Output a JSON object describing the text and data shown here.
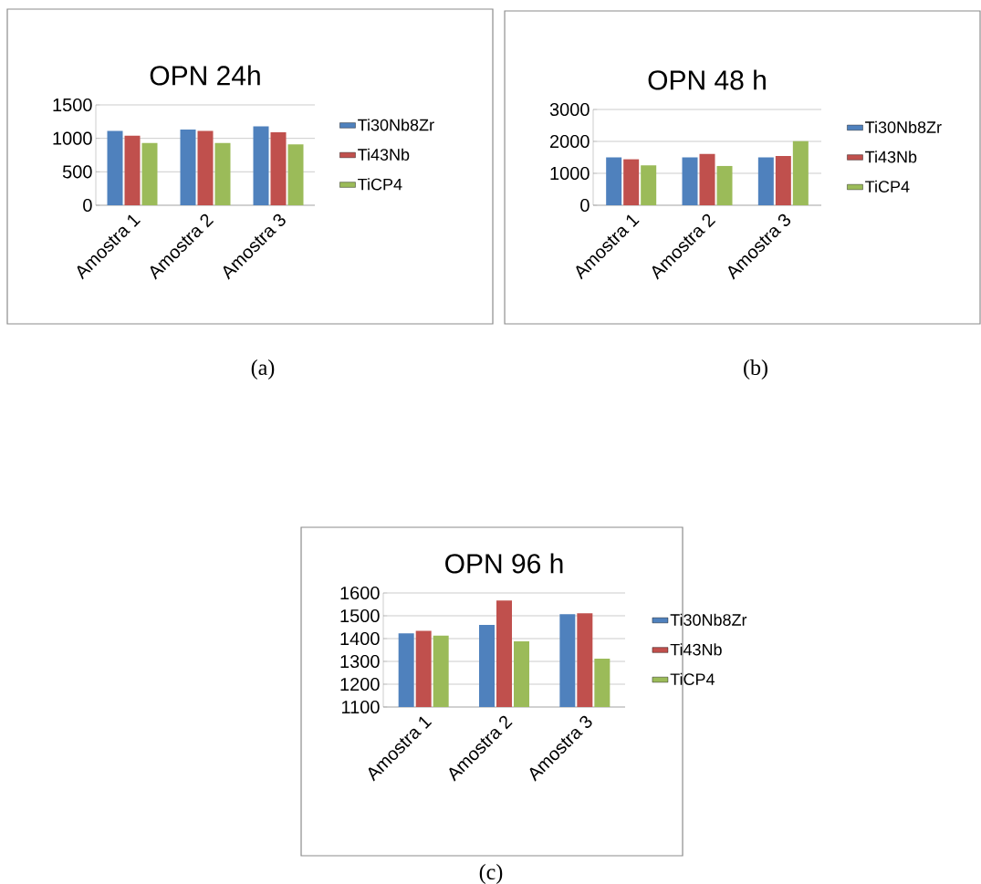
{
  "chart_data": [
    {
      "type": "bar",
      "title": "OPN 24h",
      "categories": [
        "Amostra 1",
        "Amostra 2",
        "Amostra 3"
      ],
      "series": [
        {
          "name": "Ti30Nb8Zr",
          "color": "#4f81bd",
          "values": [
            1110,
            1130,
            1180
          ]
        },
        {
          "name": "Ti43Nb",
          "color": "#c0504d",
          "values": [
            1040,
            1110,
            1090
          ]
        },
        {
          "name": "TiCP4",
          "color": "#9bbb59",
          "values": [
            930,
            930,
            910
          ]
        }
      ],
      "ylim": [
        0,
        1500
      ],
      "yticks": [
        0,
        500,
        1000,
        1500
      ],
      "grid": "y",
      "legend": "right",
      "annotations": [
        "(a)"
      ]
    },
    {
      "type": "bar",
      "title": "OPN 48 h",
      "categories": [
        "Amostra 1",
        "Amostra 2",
        "Amostra 3"
      ],
      "series": [
        {
          "name": "Ti30Nb8Zr",
          "color": "#4f81bd",
          "values": [
            1500,
            1500,
            1500
          ]
        },
        {
          "name": "Ti43Nb",
          "color": "#c0504d",
          "values": [
            1440,
            1610,
            1540
          ]
        },
        {
          "name": "TiCP4",
          "color": "#9bbb59",
          "values": [
            1250,
            1230,
            2010
          ]
        }
      ],
      "ylim": [
        0,
        3000
      ],
      "yticks": [
        0,
        1000,
        2000,
        3000
      ],
      "grid": "y",
      "legend": "right",
      "annotations": [
        "(b)"
      ]
    },
    {
      "type": "bar",
      "title": "OPN 96 h",
      "categories": [
        "Amostra 1",
        "Amostra 2",
        "Amostra 3"
      ],
      "series": [
        {
          "name": "Ti30Nb8Zr",
          "color": "#4f81bd",
          "values": [
            1423,
            1460,
            1507
          ]
        },
        {
          "name": "Ti43Nb",
          "color": "#c0504d",
          "values": [
            1434,
            1567,
            1511
          ]
        },
        {
          "name": "TiCP4",
          "color": "#9bbb59",
          "values": [
            1413,
            1388,
            1312
          ]
        }
      ],
      "ylim": [
        1100,
        1600
      ],
      "yticks": [
        1100,
        1200,
        1300,
        1400,
        1500,
        1600
      ],
      "grid": "y",
      "legend": "right",
      "annotations": [
        "(c)"
      ]
    }
  ]
}
